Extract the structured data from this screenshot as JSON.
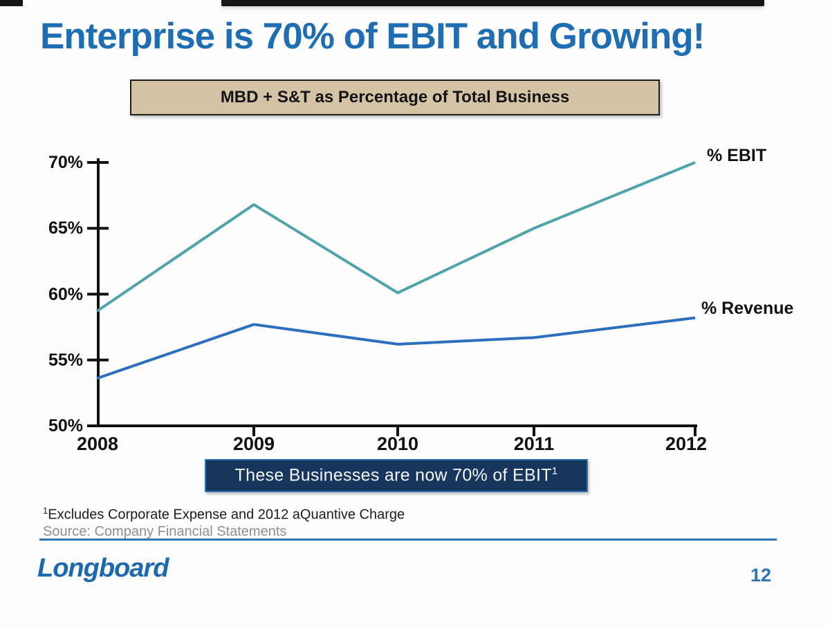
{
  "title": "Enterprise is 70% of EBIT and Growing!",
  "chart_header": "MBD + S&T as Percentage of Total Business",
  "banner": {
    "text": "These Businesses are now 70% of EBIT",
    "superscript": "1"
  },
  "footnotes": {
    "note1_superscript": "1",
    "note1": "Excludes Corporate Expense and 2012 aQuantive Charge",
    "source": "Source: Company Financial Statements"
  },
  "footer": {
    "logo": "Longboard",
    "page_number": "12"
  },
  "colors": {
    "title_blue": "#1F6DB3",
    "ebit_line": "#4FA3AB",
    "revenue_line": "#2B6FBE",
    "banner_navy": "#17365D",
    "banner_border": "#2E75B6",
    "header_tan": "#D5C3A5",
    "divider_blue": "#2E75B6",
    "axis_black": "#111111"
  },
  "chart_data": {
    "type": "line",
    "x": [
      "2008",
      "2009",
      "2010",
      "2011",
      "2012"
    ],
    "series": [
      {
        "name": "% EBIT",
        "color": "#4FA3AB",
        "values": [
          58.7,
          66.8,
          60.1,
          65.0,
          70.0
        ]
      },
      {
        "name": "% Revenue",
        "color": "#2B6FBE",
        "values": [
          53.6,
          57.7,
          56.2,
          56.7,
          58.2
        ]
      }
    ],
    "ylim": [
      50,
      70
    ],
    "ytick_values": [
      70,
      65,
      60,
      55,
      50
    ],
    "ytick_labels": [
      "70%",
      "65%",
      "60%",
      "55%",
      "50%"
    ],
    "xlabel": "",
    "ylabel": "",
    "grid": false,
    "legend_position": "right-of-line-ends"
  }
}
